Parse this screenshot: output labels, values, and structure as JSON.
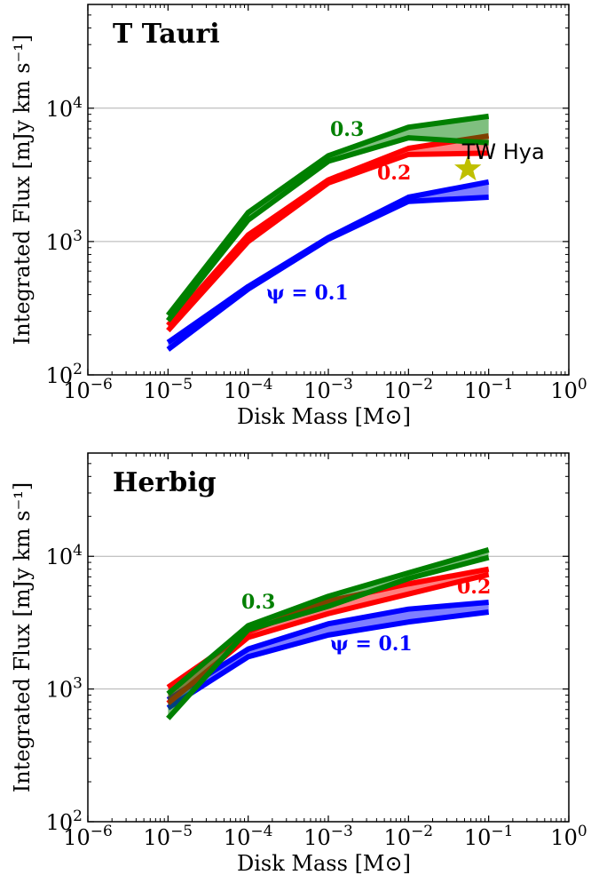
{
  "chart_data": [
    {
      "type": "line",
      "title": "T Tauri",
      "xlabel": "Disk Mass [M⊙]",
      "ylabel": "Integrated Flux [mJy km s⁻¹]",
      "xscale": "log",
      "yscale": "log",
      "xlim": [
        1e-06,
        1
      ],
      "ylim": [
        100,
        60000
      ],
      "x_ticks": [
        {
          "base": "10",
          "exp": "−6"
        },
        {
          "base": "10",
          "exp": "−5"
        },
        {
          "base": "10",
          "exp": "−4"
        },
        {
          "base": "10",
          "exp": "−3"
        },
        {
          "base": "10",
          "exp": "−2"
        },
        {
          "base": "10",
          "exp": "−1"
        },
        {
          "base": "10",
          "exp": "0"
        }
      ],
      "y_ticks": [
        {
          "base": "10",
          "exp": "2"
        },
        {
          "base": "10",
          "exp": "3"
        },
        {
          "base": "10",
          "exp": "4"
        }
      ],
      "grid": "horizontal at major ticks",
      "x": [
        1e-05,
        0.0001,
        0.001,
        0.01,
        0.1
      ],
      "series": [
        {
          "name": "ψ = 0.1",
          "label": "ψ = 0.1",
          "color": "#0000ff",
          "upper": [
            175,
            460,
            1070,
            2150,
            2800
          ],
          "lower": [
            155,
            440,
            1040,
            2000,
            2150
          ]
        },
        {
          "name": "0.2",
          "label": "0.2",
          "color": "#ff0000",
          "upper": [
            235,
            1120,
            2900,
            5000,
            6200
          ],
          "lower": [
            215,
            1000,
            2750,
            4500,
            4600
          ]
        },
        {
          "name": "0.3",
          "label": "0.3",
          "color": "#008000",
          "upper": [
            280,
            1650,
            4400,
            7200,
            8700
          ],
          "lower": [
            255,
            1450,
            4000,
            6000,
            5500
          ]
        }
      ],
      "annotations": [
        {
          "text": "TW Hya",
          "x": 0.055,
          "y": 3500,
          "marker": "star",
          "color": "#bfbf00"
        }
      ]
    },
    {
      "type": "line",
      "title": "Herbig",
      "xlabel": "Disk Mass [M⊙]",
      "ylabel": "Integrated Flux [mJy km s⁻¹]",
      "xscale": "log",
      "yscale": "log",
      "xlim": [
        1e-06,
        1
      ],
      "ylim": [
        100,
        60000
      ],
      "x_ticks": [
        {
          "base": "10",
          "exp": "−6"
        },
        {
          "base": "10",
          "exp": "−5"
        },
        {
          "base": "10",
          "exp": "−4"
        },
        {
          "base": "10",
          "exp": "−3"
        },
        {
          "base": "10",
          "exp": "−2"
        },
        {
          "base": "10",
          "exp": "−1"
        },
        {
          "base": "10",
          "exp": "0"
        }
      ],
      "y_ticks": [
        {
          "base": "10",
          "exp": "2"
        },
        {
          "base": "10",
          "exp": "3"
        },
        {
          "base": "10",
          "exp": "4"
        }
      ],
      "grid": "horizontal at major ticks",
      "x": [
        1e-05,
        0.0001,
        0.001,
        0.01,
        0.1
      ],
      "series": [
        {
          "name": "ψ = 0.1",
          "label": "ψ = 0.1",
          "color": "#0000ff",
          "upper": [
            830,
            2000,
            3100,
            4000,
            4500
          ],
          "lower": [
            720,
            1750,
            2550,
            3200,
            3800
          ]
        },
        {
          "name": "0.2",
          "label": "0.2",
          "color": "#ff0000",
          "upper": [
            1030,
            2700,
            4600,
            6200,
            8000
          ],
          "lower": [
            780,
            2450,
            3700,
            5200,
            7300
          ]
        },
        {
          "name": "0.3",
          "label": "0.3",
          "color": "#008000",
          "upper": [
            920,
            3000,
            5000,
            7500,
            11200
          ],
          "lower": [
            600,
            2800,
            4200,
            6800,
            9800
          ]
        }
      ],
      "annotations": []
    }
  ]
}
